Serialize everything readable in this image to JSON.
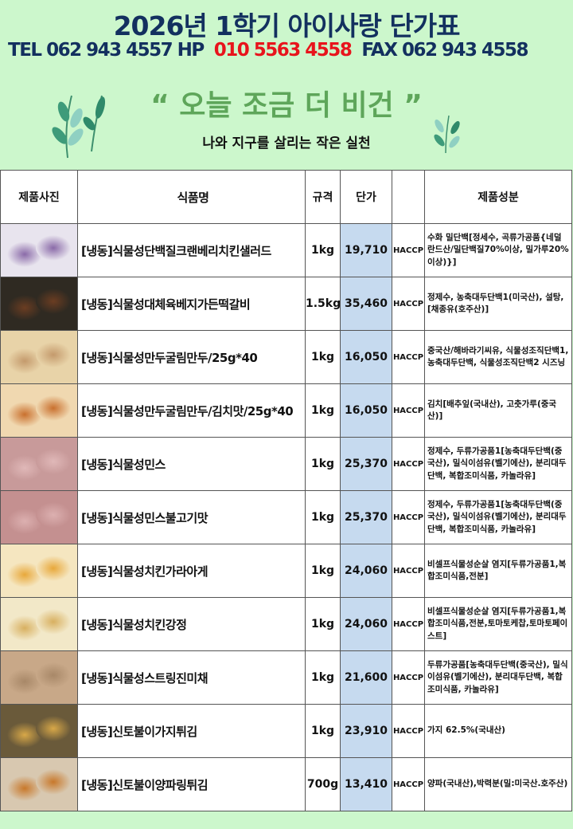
{
  "header": {
    "title": "2026년 1학기 아이사랑 단가표",
    "tel_label": "TEL 062 943 4557",
    "hp_label": "HP",
    "hp_number": "010 5563 4558",
    "fax_label": "FAX 062 943 4558",
    "slogan": "“ 오늘 조금 더 비건 ”",
    "subtitle": "나와 지구를 살리는 작은 실천"
  },
  "colors": {
    "title": "#13305f",
    "hp": "#e8141c",
    "slogan": "#5ea65a",
    "background": "#ccf7cc",
    "price_column": "#c6daef"
  },
  "table": {
    "columns": [
      "제품사진",
      "식품명",
      "규격",
      "단가",
      "",
      "제품성분"
    ],
    "rows": [
      {
        "name": "[냉동]식물성단백질크랜베리치킨샐러드",
        "spec": "1kg",
        "price": "19,710",
        "cert": "HACCP",
        "ingredients": "수화 밀단백[정세수, 곡류가공품{네덜란드산/밀단백질70%이상, 밀가루20%이상)}]",
        "photo": "salad-package"
      },
      {
        "name": "[냉동]식물성대체육베지가든떡갈비",
        "spec": "1.5kg",
        "price": "35,460",
        "cert": "HACCP",
        "ingredients": "정제수, 농축대두단백1(미국산), 설탕,[채종유(호주산)]",
        "photo": "tteokgalbi"
      },
      {
        "name": "[냉동]식물성만두굴림만두/25g*40",
        "spec": "1kg",
        "price": "16,050",
        "cert": "HACCP",
        "ingredients": "중국산/해바라기씨유, 식물성조직단백1, 농축대두단백, 식물성조직단백2 시즈닝",
        "photo": "dumpling"
      },
      {
        "name": "[냉동]식물성만두굴림만두/김치맛/25g*40",
        "spec": "1kg",
        "price": "16,050",
        "cert": "HACCP",
        "ingredients": "김치[배추잎(국내산), 고춧가루(중국산)]",
        "photo": "kimchi-dumpling"
      },
      {
        "name": "[냉동]식물성민스",
        "spec": "1kg",
        "price": "25,370",
        "cert": "HACCP",
        "ingredients": "정제수, 두류가공품1[농축대두단백(중국산), 밀식이섬유(벨기에산), 분리대두단백, 복합조미식품, 카놀라유]",
        "photo": "mince"
      },
      {
        "name": "[냉동]식물성민스불고기맛",
        "spec": "1kg",
        "price": "25,370",
        "cert": "HACCP",
        "ingredients": "정제수, 두류가공품1[농축대두단백(중국산), 밀식이섬유(벨기에산), 분리대두단백, 복합조미식품, 카놀라유]",
        "photo": "mince-bulgogi"
      },
      {
        "name": "[냉동]식물성치킨가라아게",
        "spec": "1kg",
        "price": "24,060",
        "cert": "HACCP",
        "ingredients": "비셀프식물성순살 염지[두류가공품1,복합조미식품,전분]",
        "photo": "karaage"
      },
      {
        "name": "[냉동]식물성치킨강정",
        "spec": "1kg",
        "price": "24,060",
        "cert": "HACCP",
        "ingredients": "비셀프식물성순살 염지[두류가공품1,복합조미식품,전분,토마토케찹,토마토페이스트]",
        "photo": "gangjeong"
      },
      {
        "name": "[냉동]식물성스트링진미채",
        "spec": "1kg",
        "price": "21,600",
        "cert": "HACCP",
        "ingredients": "두류가공품[농축대두단백(중국산), 밀식이섬유(벨기에산), 분리대두단백, 복합조미식품, 카놀라유]",
        "photo": "string-jinmichae"
      },
      {
        "name": "[냉동]신토불이가지튀김",
        "spec": "1kg",
        "price": "23,910",
        "cert": "HACCP",
        "ingredients": "가지 62.5%(국내산)",
        "photo": "eggplant-fry"
      },
      {
        "name": "[냉동]신토불이양파링튀김",
        "spec": "700g",
        "price": "13,410",
        "cert": "HACCP",
        "ingredients": "양파(국내산),박력분(밀:미국산.호주산)",
        "photo": "onion-ring"
      }
    ]
  }
}
